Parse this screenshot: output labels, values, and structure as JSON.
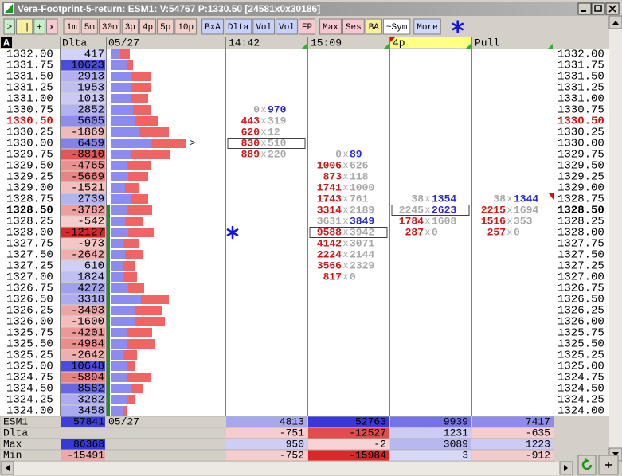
{
  "window": {
    "title": "Vera-Footprint-5-return: ESM1: V:54767 P:1330.50 [24581x0x30186]"
  },
  "toolbar": {
    "buttons": [
      ">",
      "||",
      "+",
      "x",
      "1m",
      "5m",
      "30m",
      "3p",
      "4p",
      "5p",
      "10p",
      "BxA",
      "Dlta",
      "Vol",
      "Vol",
      "FP",
      "Max",
      "Ses",
      "BA",
      "~Sym",
      "More"
    ]
  },
  "header": {
    "corner": "A",
    "delta": "Dlta",
    "date": "05/27"
  },
  "rows": [
    {
      "price": "1332.00",
      "delta": 417,
      "profile": [
        12,
        12
      ]
    },
    {
      "price": "1331.75",
      "delta": 10623,
      "profile": [
        20,
        8
      ]
    },
    {
      "price": "1331.50",
      "delta": 2913,
      "profile": [
        25,
        25
      ]
    },
    {
      "price": "1331.25",
      "delta": 1953,
      "profile": [
        25,
        25
      ]
    },
    {
      "price": "1331.00",
      "delta": 1013,
      "profile": [
        25,
        22
      ]
    },
    {
      "price": "1330.75",
      "delta": 2852,
      "profile": [
        28,
        22
      ]
    },
    {
      "price": "1330.50",
      "delta": 5605,
      "profile": [
        30,
        30
      ],
      "style": "current"
    },
    {
      "price": "1330.25",
      "delta": -1869,
      "profile": [
        35,
        38
      ]
    },
    {
      "price": "1330.00",
      "delta": 6459,
      "profile": [
        50,
        45
      ],
      "marker": ">"
    },
    {
      "price": "1329.75",
      "delta": -8810,
      "profile": [
        25,
        50
      ]
    },
    {
      "price": "1329.50",
      "delta": -4765,
      "profile": [
        20,
        30
      ]
    },
    {
      "price": "1329.25",
      "delta": -5669,
      "profile": [
        22,
        25
      ]
    },
    {
      "price": "1329.00",
      "delta": -1521,
      "profile": [
        18,
        18
      ]
    },
    {
      "price": "1328.75",
      "delta": 2739,
      "profile": [
        25,
        22
      ]
    },
    {
      "price": "1328.50",
      "delta": -3782,
      "profile": [
        20,
        32
      ],
      "style": "bold"
    },
    {
      "price": "1328.25",
      "delta": -542,
      "profile": [
        18,
        22
      ]
    },
    {
      "price": "1328.00",
      "delta": -12127,
      "profile": [
        22,
        32
      ]
    },
    {
      "price": "1327.75",
      "delta": -973,
      "profile": [
        15,
        20
      ]
    },
    {
      "price": "1327.50",
      "delta": -2642,
      "profile": [
        18,
        22
      ]
    },
    {
      "price": "1327.25",
      "delta": 610,
      "profile": [
        15,
        15
      ]
    },
    {
      "price": "1327.00",
      "delta": 1824,
      "profile": [
        15,
        18
      ]
    },
    {
      "price": "1326.75",
      "delta": 4272,
      "profile": [
        22,
        20
      ]
    },
    {
      "price": "1326.50",
      "delta": 3318,
      "profile": [
        38,
        35
      ]
    },
    {
      "price": "1326.25",
      "delta": -3403,
      "profile": [
        30,
        35
      ]
    },
    {
      "price": "1326.00",
      "delta": -1600,
      "profile": [
        30,
        38
      ]
    },
    {
      "price": "1325.75",
      "delta": -4201,
      "profile": [
        20,
        32
      ]
    },
    {
      "price": "1325.50",
      "delta": -4984,
      "profile": [
        20,
        35
      ]
    },
    {
      "price": "1325.25",
      "delta": -2642,
      "profile": [
        15,
        18
      ]
    },
    {
      "price": "1325.00",
      "delta": 10648,
      "profile": [
        20,
        10
      ]
    },
    {
      "price": "1324.75",
      "delta": -5894,
      "profile": [
        20,
        30
      ]
    },
    {
      "price": "1324.50",
      "delta": 8582,
      "profile": [
        25,
        15
      ]
    },
    {
      "price": "1324.25",
      "delta": 3282,
      "profile": [
        20,
        10
      ]
    },
    {
      "price": "1324.00",
      "delta": 3458,
      "profile": [
        15,
        5
      ]
    }
  ],
  "footprint": {
    "separator": "x",
    "bid_color": "#d01818",
    "ask_color": "#2828d8",
    "neutral_color": "#a8a8a8",
    "columns": [
      {
        "name": "14:42",
        "cells": [
          {
            "price": "1330.75",
            "bid": 0,
            "ask": 970,
            "dominant": "ask"
          },
          {
            "price": "1330.50",
            "bid": 443,
            "ask": 319,
            "dominant": "bid"
          },
          {
            "price": "1330.25",
            "bid": 620,
            "ask": 12,
            "dominant": "bid"
          },
          {
            "price": "1330.00",
            "bid": 830,
            "ask": 510,
            "dominant": "bid",
            "box": true
          },
          {
            "price": "1329.75",
            "bid": 889,
            "ask": 220,
            "dominant": "bid"
          }
        ]
      },
      {
        "name": "15:09",
        "cells": [
          {
            "price": "1329.75",
            "bid": 0,
            "ask": 89,
            "dominant": "ask"
          },
          {
            "price": "1329.50",
            "bid": 1006,
            "ask": 626,
            "dominant": "bid"
          },
          {
            "price": "1329.25",
            "bid": 873,
            "ask": 118,
            "dominant": "bid"
          },
          {
            "price": "1329.00",
            "bid": 1741,
            "ask": 1000,
            "dominant": "bid"
          },
          {
            "price": "1328.75",
            "bid": 1743,
            "ask": 761,
            "dominant": "bid"
          },
          {
            "price": "1328.50",
            "bid": 3314,
            "ask": 2189,
            "dominant": "bid"
          },
          {
            "price": "1328.25",
            "bid": 3631,
            "ask": 3849,
            "dominant": "ask"
          },
          {
            "price": "1328.00",
            "bid": 9588,
            "ask": 3942,
            "dominant": "bid",
            "box": true
          },
          {
            "price": "1327.75",
            "bid": 4142,
            "ask": 3071,
            "dominant": "bid"
          },
          {
            "price": "1327.50",
            "bid": 2224,
            "ask": 2144,
            "dominant": "bid"
          },
          {
            "price": "1327.25",
            "bid": 3566,
            "ask": 2329,
            "dominant": "bid"
          },
          {
            "price": "1327.00",
            "bid": 817,
            "ask": 0,
            "dominant": "bid"
          }
        ]
      },
      {
        "name": "4p",
        "highlight": true,
        "cells": [
          {
            "price": "1328.75",
            "bid": 38,
            "ask": 1354,
            "dominant": "ask"
          },
          {
            "price": "1328.50",
            "bid": 2245,
            "ask": 2623,
            "dominant": "ask",
            "box": true
          },
          {
            "price": "1328.25",
            "bid": 1784,
            "ask": 1608,
            "dominant": "bid"
          },
          {
            "price": "1328.00",
            "bid": 287,
            "ask": 0,
            "dominant": "bid"
          }
        ]
      },
      {
        "name": "Pull",
        "cells": [
          {
            "price": "1328.75",
            "bid": 38,
            "ask": 1344,
            "dominant": "ask"
          },
          {
            "price": "1328.50",
            "bid": 2215,
            "ask": 1694,
            "dominant": "bid"
          },
          {
            "price": "1328.25",
            "bid": 1516,
            "ask": 353,
            "dominant": "bid"
          },
          {
            "price": "1328.00",
            "bid": 257,
            "ask": 0,
            "dominant": "bid"
          }
        ]
      }
    ]
  },
  "summary": {
    "rows": [
      {
        "label": "ESM1",
        "total": 57841,
        "date": "05/27",
        "values": [
          4813,
          52763,
          9939,
          7417
        ]
      },
      {
        "label": "Dlta",
        "values": [
          -751,
          -12527,
          1231,
          -635
        ]
      },
      {
        "label": "Max",
        "total": 86368,
        "values": [
          950,
          -2,
          3089,
          1223
        ]
      },
      {
        "label": "Min",
        "total": -15491,
        "values": [
          -752,
          -15984,
          3,
          -912
        ]
      }
    ]
  }
}
